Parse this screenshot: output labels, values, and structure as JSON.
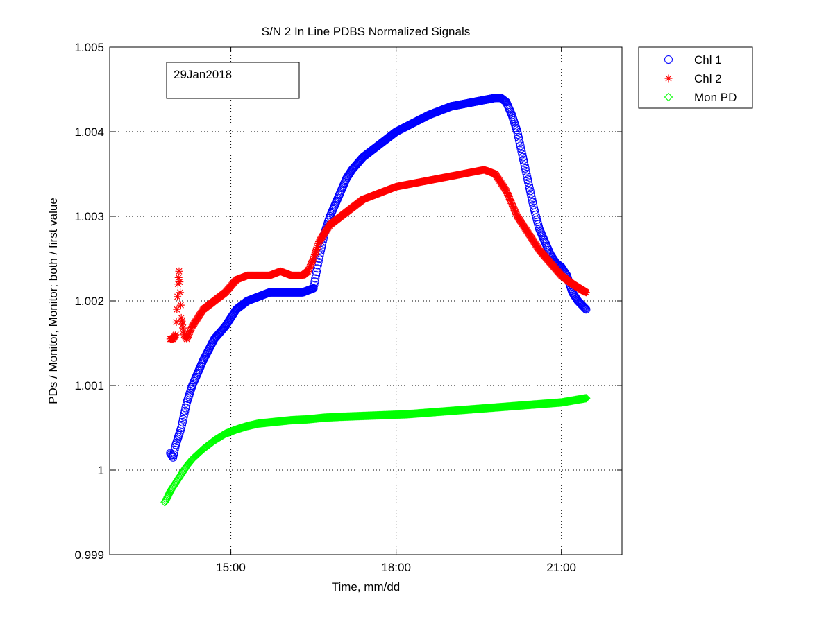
{
  "chart_data": {
    "type": "scatter",
    "title": "S/N 2 In Line PDBS Normalized Signals",
    "xlabel": "Time, mm/dd",
    "ylabel": "PDs / Monitor, Monitor; both / first value",
    "x_tick_labels": [
      "15:00",
      "18:00",
      "21:00"
    ],
    "x_ticks_hours": [
      15,
      18,
      21
    ],
    "xlim_hours": [
      12.8,
      22.1
    ],
    "ylim": [
      0.999,
      1.005
    ],
    "y_ticks": [
      0.999,
      1,
      1.001,
      1.002,
      1.003,
      1.004,
      1.005
    ],
    "y_tick_labels": [
      "0.999",
      "1",
      "1.001",
      "1.002",
      "1.003",
      "1.004",
      "1.005"
    ],
    "grid": true,
    "legend_position": "outside-right-top",
    "annotation": "29Jan2018",
    "series": [
      {
        "name": "Chl 1",
        "marker": "circle",
        "color": "#0000ff",
        "x_hours": [
          13.9,
          13.95,
          14.0,
          14.1,
          14.2,
          14.3,
          14.5,
          14.7,
          14.9,
          15.1,
          15.3,
          15.5,
          15.7,
          15.9,
          16.1,
          16.3,
          16.5,
          16.6,
          16.7,
          16.8,
          16.9,
          17.0,
          17.1,
          17.2,
          17.4,
          17.6,
          17.8,
          18.0,
          18.3,
          18.6,
          19.0,
          19.4,
          19.8,
          19.9,
          20.0,
          20.1,
          20.2,
          20.3,
          20.4,
          20.5,
          20.6,
          20.7,
          20.8,
          20.9,
          21.0,
          21.1,
          21.2,
          21.3,
          21.45
        ],
        "values": [
          1.0002,
          1.00015,
          1.0003,
          1.0005,
          1.0008,
          1.001,
          1.0013,
          1.00155,
          1.0017,
          1.0019,
          1.002,
          1.00205,
          1.0021,
          1.0021,
          1.0021,
          1.0021,
          1.00215,
          1.0025,
          1.0028,
          1.003,
          1.00315,
          1.0033,
          1.00345,
          1.00355,
          1.0037,
          1.0038,
          1.0039,
          1.004,
          1.0041,
          1.0042,
          1.0043,
          1.00435,
          1.0044,
          1.0044,
          1.00435,
          1.0042,
          1.004,
          1.0037,
          1.0034,
          1.0031,
          1.00285,
          1.0027,
          1.00255,
          1.00245,
          1.0024,
          1.0023,
          1.0021,
          1.002,
          1.0019
        ]
      },
      {
        "name": "Chl 2",
        "marker": "asterisk",
        "color": "#ff0000",
        "x_hours": [
          13.9,
          13.95,
          14.0,
          14.02,
          14.04,
          14.06,
          14.08,
          14.1,
          14.15,
          14.2,
          14.3,
          14.5,
          14.7,
          14.9,
          15.1,
          15.3,
          15.5,
          15.7,
          15.9,
          16.1,
          16.3,
          16.4,
          16.5,
          16.6,
          16.8,
          17.0,
          17.2,
          17.4,
          17.6,
          17.8,
          18.0,
          18.4,
          18.8,
          19.2,
          19.6,
          19.8,
          20.0,
          20.2,
          20.4,
          20.6,
          20.8,
          21.0,
          21.2,
          21.45
        ],
        "values": [
          1.00155,
          1.00155,
          1.0016,
          1.0019,
          1.0022,
          1.00235,
          1.0021,
          1.0018,
          1.0016,
          1.00155,
          1.0017,
          1.0019,
          1.002,
          1.0021,
          1.00225,
          1.0023,
          1.0023,
          1.0023,
          1.00235,
          1.0023,
          1.0023,
          1.00235,
          1.0025,
          1.0027,
          1.0029,
          1.003,
          1.0031,
          1.0032,
          1.00325,
          1.0033,
          1.00335,
          1.0034,
          1.00345,
          1.0035,
          1.00355,
          1.0035,
          1.0033,
          1.003,
          1.0028,
          1.0026,
          1.00245,
          1.0023,
          1.0022,
          1.0021
        ]
      },
      {
        "name": "Mon PD",
        "marker": "diamond",
        "color": "#00ff00",
        "x_hours": [
          13.8,
          13.85,
          13.9,
          14.0,
          14.1,
          14.2,
          14.3,
          14.5,
          14.7,
          14.9,
          15.1,
          15.3,
          15.5,
          15.8,
          16.1,
          16.4,
          16.7,
          17.0,
          17.4,
          17.8,
          18.2,
          18.6,
          19.0,
          19.4,
          19.8,
          20.2,
          20.6,
          21.0,
          21.45
        ],
        "values": [
          0.99962,
          0.99968,
          0.99975,
          0.99985,
          0.99995,
          1.00005,
          1.00013,
          1.00025,
          1.00035,
          1.00043,
          1.00048,
          1.00052,
          1.00055,
          1.00057,
          1.00059,
          1.0006,
          1.00062,
          1.00063,
          1.00064,
          1.00065,
          1.00066,
          1.00068,
          1.0007,
          1.00072,
          1.00074,
          1.00076,
          1.00078,
          1.0008,
          1.00085
        ]
      }
    ]
  }
}
